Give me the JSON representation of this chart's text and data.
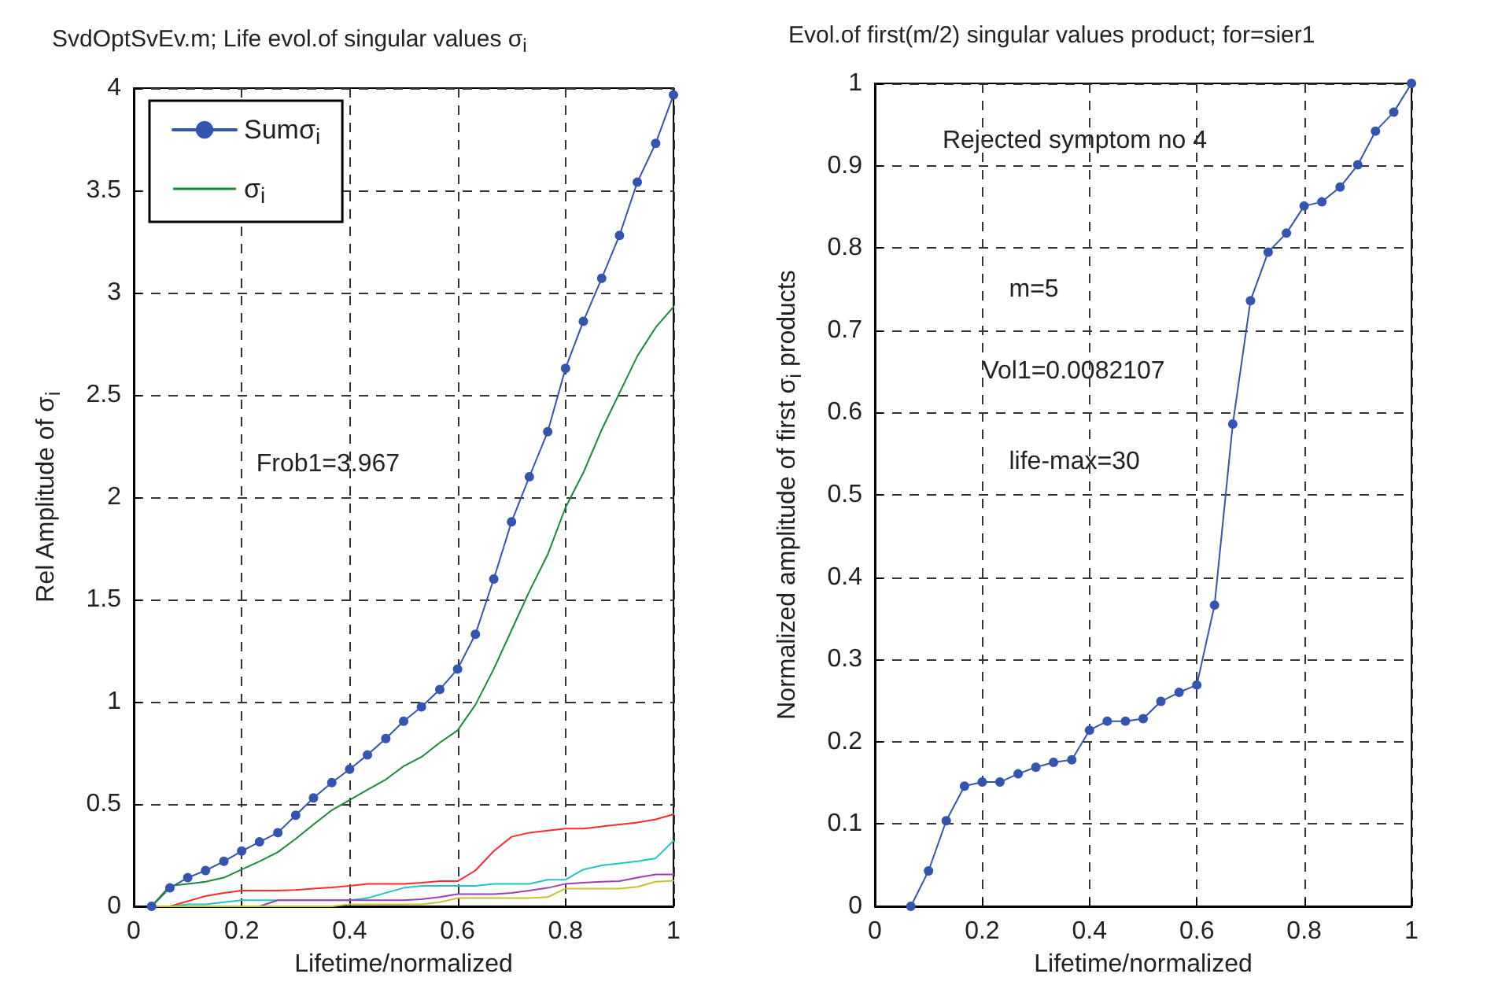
{
  "chart_data": [
    {
      "type": "line",
      "title": "SvdOptSvEv.m; Life evol.of singular values σ$_{i}$",
      "xlabel": "Lifetime/normalized",
      "ylabel": "Rel Amplitude of σ$_{i}$",
      "xlim": [
        0,
        1
      ],
      "xticks": [
        0,
        0.2,
        0.4,
        0.6,
        0.8,
        1
      ],
      "ylim": [
        0,
        4
      ],
      "yticks": [
        0,
        0.5,
        1,
        1.5,
        2,
        2.5,
        3,
        3.5,
        4
      ],
      "grid": true,
      "legend": "top left",
      "annotations": [
        "Frob1=3.967"
      ],
      "x": [
        0.033,
        0.067,
        0.1,
        0.133,
        0.167,
        0.2,
        0.233,
        0.267,
        0.3,
        0.333,
        0.367,
        0.4,
        0.433,
        0.467,
        0.5,
        0.533,
        0.567,
        0.6,
        0.633,
        0.667,
        0.7,
        0.733,
        0.767,
        0.8,
        0.833,
        0.867,
        0.9,
        0.933,
        0.967,
        1
      ],
      "series": [
        {
          "name": "Sumσ$_{i}$",
          "color": "#3355b0",
          "marker": "circle",
          "values": [
            0,
            0.09,
            0.14,
            0.175,
            0.22,
            0.27,
            0.315,
            0.36,
            0.445,
            0.53,
            0.605,
            0.67,
            0.74,
            0.82,
            0.905,
            0.975,
            1.06,
            1.16,
            1.33,
            1.6,
            1.88,
            2.1,
            2.32,
            2.63,
            2.86,
            3.07,
            3.28,
            3.54,
            3.73,
            3.967
          ]
        },
        {
          "name": "σ$_{i}$",
          "color": "#1a8a3a",
          "marker": "none",
          "values": [
            0,
            0.1,
            0.11,
            0.12,
            0.14,
            0.18,
            0.22,
            0.265,
            0.33,
            0.4,
            0.47,
            0.52,
            0.57,
            0.62,
            0.685,
            0.73,
            0.8,
            0.86,
            0.985,
            1.16,
            1.35,
            1.54,
            1.72,
            1.95,
            2.12,
            2.33,
            2.51,
            2.69,
            2.83,
            2.93
          ]
        },
        {
          "color": "#ff2a2a",
          "marker": "none",
          "values": [
            0,
            0,
            0.025,
            0.05,
            0.065,
            0.077,
            0.077,
            0.077,
            0.08,
            0.087,
            0.092,
            0.1,
            0.11,
            0.11,
            0.11,
            0.115,
            0.123,
            0.123,
            0.175,
            0.27,
            0.34,
            0.36,
            0.37,
            0.38,
            0.38,
            0.39,
            0.4,
            0.41,
            0.425,
            0.45
          ]
        },
        {
          "color": "#22c4c4",
          "marker": "none",
          "values": [
            0,
            0,
            0.01,
            0.01,
            0.02,
            0.03,
            0.03,
            0.03,
            0.03,
            0.03,
            0.03,
            0.03,
            0.04,
            0.066,
            0.09,
            0.1,
            0.1,
            0.1,
            0.1,
            0.11,
            0.11,
            0.11,
            0.13,
            0.13,
            0.18,
            0.2,
            0.21,
            0.22,
            0.235,
            0.32
          ]
        },
        {
          "color": "#a040a8",
          "marker": "none",
          "values": [
            null,
            null,
            null,
            null,
            null,
            0,
            0,
            0.03,
            0.03,
            0.03,
            0.03,
            0.03,
            0.03,
            0.03,
            0.03,
            0.035,
            0.045,
            0.06,
            0.06,
            0.06,
            0.065,
            0.077,
            0.09,
            0.11,
            0.115,
            0.12,
            0.123,
            0.14,
            0.156,
            0.156
          ]
        },
        {
          "color": "#c8c030",
          "marker": "none",
          "values": [
            0,
            0,
            0,
            0,
            0,
            0,
            0,
            0,
            0,
            0,
            0,
            0.01,
            0.01,
            0.01,
            0.01,
            0.01,
            0.02,
            0.04,
            0.04,
            0.04,
            0.04,
            0.04,
            0.045,
            0.087,
            0.087,
            0.087,
            0.087,
            0.095,
            0.12,
            0.125
          ]
        }
      ]
    },
    {
      "type": "line",
      "title": "Evol.of first(m/2) singular values product; for=sier1",
      "xlabel": "Lifetime/normalized",
      "ylabel": "Normalized amplitude of first σ$_{i}$ products",
      "xlim": [
        0,
        1
      ],
      "xticks": [
        0,
        0.2,
        0.4,
        0.6,
        0.8,
        1
      ],
      "ylim": [
        0,
        1
      ],
      "yticks": [
        0,
        0.1,
        0.2,
        0.3,
        0.4,
        0.5,
        0.6,
        0.7,
        0.8,
        0.9,
        1
      ],
      "grid": true,
      "annotations": [
        "Rejected symptom no 4",
        "m=5",
        "Vol1=0.0082107",
        "life-max=30"
      ],
      "x": [
        0.067,
        0.1,
        0.133,
        0.167,
        0.2,
        0.233,
        0.267,
        0.3,
        0.333,
        0.367,
        0.4,
        0.433,
        0.467,
        0.5,
        0.533,
        0.567,
        0.6,
        0.633,
        0.667,
        0.7,
        0.733,
        0.767,
        0.8,
        0.833,
        0.867,
        0.9,
        0.933,
        0.967,
        1
      ],
      "series": [
        {
          "color": "#3355b0",
          "marker": "circle",
          "values": [
            0,
            0.043,
            0.104,
            0.146,
            0.151,
            0.151,
            0.161,
            0.169,
            0.175,
            0.178,
            0.214,
            0.225,
            0.225,
            0.228,
            0.249,
            0.26,
            0.269,
            0.366,
            0.586,
            0.736,
            0.795,
            0.818,
            0.851,
            0.856,
            0.874,
            0.901,
            0.942,
            0.965,
            1
          ]
        }
      ]
    }
  ]
}
